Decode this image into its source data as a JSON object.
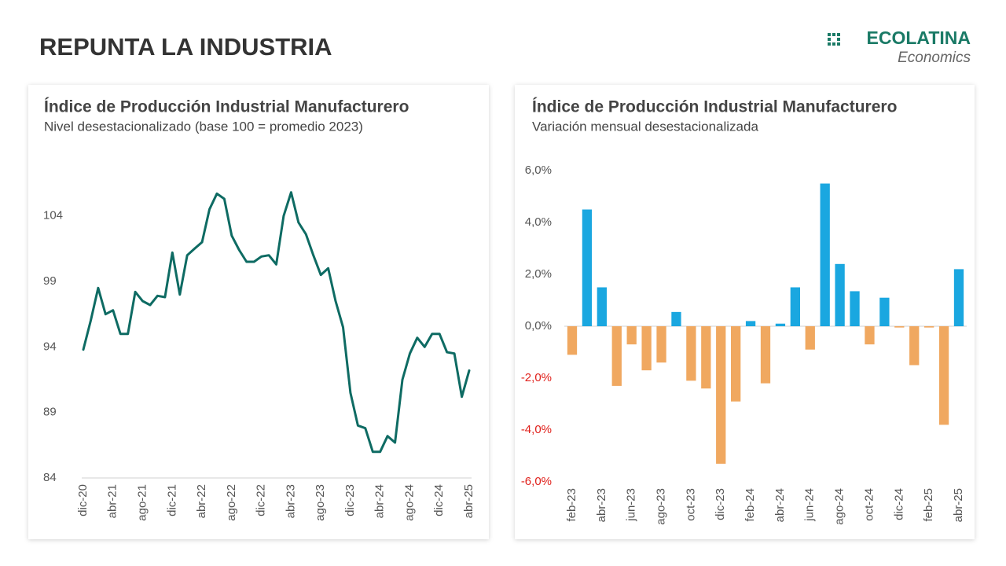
{
  "header": {
    "title": "REPUNTA LA INDUSTRIA",
    "logo": "ECOLATINA",
    "logo_sub": "Economics"
  },
  "chart_data": [
    {
      "type": "line",
      "title": "Índice de Producción Industrial Manufacturero",
      "subtitle": "Nivel desestacionalizado (base 100 = promedio 2023)",
      "color": "#0e6b63",
      "categories": [
        "dic-20",
        null,
        null,
        null,
        "abr-21",
        null,
        null,
        null,
        "ago-21",
        null,
        null,
        null,
        "dic-21",
        null,
        null,
        null,
        "abr-22",
        null,
        null,
        null,
        "ago-22",
        null,
        null,
        null,
        "dic-22",
        null,
        null,
        null,
        "abr-23",
        null,
        null,
        null,
        "ago-23",
        null,
        null,
        null,
        "dic-23",
        null,
        null,
        null,
        "abr-24",
        null,
        null,
        null,
        "ago-24",
        null,
        null,
        null,
        "dic-24",
        null,
        null,
        null,
        "abr-25"
      ],
      "values": [
        93.8,
        96,
        98.5,
        96.5,
        96.8,
        95,
        95,
        98.2,
        97.5,
        97.2,
        97.9,
        97.8,
        101.2,
        98,
        101,
        101.5,
        102,
        104.5,
        105.7,
        105.3,
        102.5,
        101.4,
        100.5,
        100.5,
        100.9,
        101,
        100.3,
        104,
        105.8,
        103.5,
        102.6,
        101,
        99.5,
        100,
        97.5,
        95.5,
        90.5,
        88,
        87.8,
        86,
        86,
        87.2,
        86.7,
        91.5,
        93.5,
        94.7,
        94,
        95,
        95,
        93.6,
        93.5,
        90.2,
        92.2
      ],
      "ylim": [
        84,
        108
      ],
      "yticks": [
        84,
        89,
        94,
        99,
        104
      ]
    },
    {
      "type": "bar",
      "title": "Índice de Producción Industrial Manufacturero",
      "subtitle": "Variación mensual desestacionalizada",
      "positive_color": "#1aa7e0",
      "negative_color": "#f0a860",
      "negative_tick_color": "#e0201b",
      "categories": [
        "feb-23",
        null,
        "abr-23",
        null,
        "jun-23",
        null,
        "ago-23",
        null,
        "oct-23",
        null,
        "dic-23",
        null,
        "feb-24",
        null,
        "abr-24",
        null,
        "jun-24",
        null,
        "ago-24",
        null,
        "oct-24",
        null,
        "dic-24",
        null,
        "feb-25",
        null,
        "abr-25"
      ],
      "values": [
        -1.1,
        4.5,
        1.5,
        -2.3,
        -0.7,
        -1.7,
        -1.4,
        0.55,
        -2.1,
        -2.4,
        -5.3,
        -2.9,
        0.2,
        -2.2,
        0.1,
        1.5,
        -0.9,
        5.5,
        2.4,
        1.35,
        -0.7,
        1.1,
        -0.05,
        -1.5,
        -0.05,
        -3.8,
        2.2
      ],
      "ylim": [
        -6,
        6
      ],
      "yticks": [
        {
          "value": -6,
          "label": "-6,0%"
        },
        {
          "value": -4,
          "label": "-4,0%"
        },
        {
          "value": -2,
          "label": "-2,0%"
        },
        {
          "value": 0,
          "label": "0,0%"
        },
        {
          "value": 2,
          "label": "2,0%"
        },
        {
          "value": 4,
          "label": "4,0%"
        },
        {
          "value": 6,
          "label": "6,0%"
        }
      ]
    }
  ]
}
